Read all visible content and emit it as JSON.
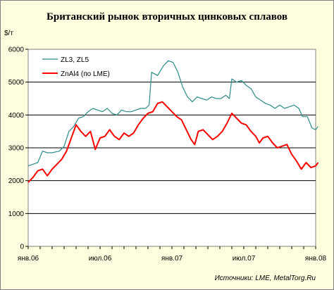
{
  "chart_data": {
    "type": "line",
    "title": "Британский рынок вторичных цинковых сплавов",
    "ylabel": "$/т",
    "xlabel": "",
    "ylim": [
      0,
      6000
    ],
    "yticks": [
      "0",
      "1000",
      "2000",
      "3000",
      "4000",
      "5000",
      "6000"
    ],
    "xticks": [
      {
        "label": "янв.06",
        "month": 0
      },
      {
        "label": "июл.06",
        "month": 6
      },
      {
        "label": "янв.07",
        "month": 12
      },
      {
        "label": "июл.07",
        "month": 18
      },
      {
        "label": "янв.08",
        "month": 24
      }
    ],
    "grid": true,
    "legend_position": "top-left",
    "series": [
      {
        "name": "ZL3, ZL5",
        "color": "#2e8b8b",
        "points": [
          [
            0.0,
            2450
          ],
          [
            0.4,
            2500
          ],
          [
            0.8,
            2550
          ],
          [
            1.2,
            2900
          ],
          [
            1.6,
            2850
          ],
          [
            2.0,
            2850
          ],
          [
            2.6,
            2900
          ],
          [
            3.0,
            3050
          ],
          [
            3.4,
            3500
          ],
          [
            3.8,
            3650
          ],
          [
            4.2,
            3900
          ],
          [
            4.6,
            3950
          ],
          [
            5.0,
            4100
          ],
          [
            5.4,
            4200
          ],
          [
            5.8,
            4150
          ],
          [
            6.2,
            4100
          ],
          [
            6.6,
            4200
          ],
          [
            7.0,
            4050
          ],
          [
            7.4,
            4000
          ],
          [
            7.8,
            4150
          ],
          [
            8.2,
            4100
          ],
          [
            8.6,
            4100
          ],
          [
            9.0,
            4150
          ],
          [
            9.4,
            4200
          ],
          [
            9.8,
            4200
          ],
          [
            10.1,
            4300
          ],
          [
            10.3,
            5300
          ],
          [
            10.8,
            5200
          ],
          [
            11.3,
            5500
          ],
          [
            11.7,
            5650
          ],
          [
            12.1,
            5600
          ],
          [
            12.5,
            5300
          ],
          [
            12.9,
            4850
          ],
          [
            13.3,
            4550
          ],
          [
            13.7,
            4400
          ],
          [
            14.1,
            4550
          ],
          [
            14.5,
            4500
          ],
          [
            14.9,
            4450
          ],
          [
            15.3,
            4550
          ],
          [
            15.7,
            4500
          ],
          [
            16.1,
            4500
          ],
          [
            16.5,
            4600
          ],
          [
            16.8,
            4500
          ],
          [
            17.0,
            5100
          ],
          [
            17.4,
            5000
          ],
          [
            17.8,
            5050
          ],
          [
            18.2,
            4900
          ],
          [
            18.6,
            4800
          ],
          [
            19.0,
            4550
          ],
          [
            19.4,
            4450
          ],
          [
            19.8,
            4350
          ],
          [
            20.2,
            4300
          ],
          [
            20.6,
            4200
          ],
          [
            21.0,
            4300
          ],
          [
            21.4,
            4200
          ],
          [
            21.8,
            4250
          ],
          [
            22.2,
            4300
          ],
          [
            22.6,
            4200
          ],
          [
            22.9,
            3950
          ],
          [
            23.3,
            3950
          ],
          [
            23.7,
            3600
          ],
          [
            24.0,
            3550
          ],
          [
            24.2,
            3650
          ]
        ]
      },
      {
        "name": "ZnAl4 (по LME)",
        "color": "#ff0000",
        "points": [
          [
            0.0,
            1950
          ],
          [
            0.4,
            2100
          ],
          [
            0.8,
            2300
          ],
          [
            1.2,
            2350
          ],
          [
            1.6,
            2150
          ],
          [
            2.0,
            2350
          ],
          [
            2.4,
            2500
          ],
          [
            2.8,
            2650
          ],
          [
            3.2,
            2900
          ],
          [
            3.6,
            3300
          ],
          [
            4.0,
            3700
          ],
          [
            4.4,
            3500
          ],
          [
            4.8,
            3350
          ],
          [
            5.2,
            3500
          ],
          [
            5.6,
            2950
          ],
          [
            6.0,
            3300
          ],
          [
            6.4,
            3350
          ],
          [
            6.8,
            3550
          ],
          [
            7.2,
            3350
          ],
          [
            7.6,
            3250
          ],
          [
            8.0,
            3450
          ],
          [
            8.4,
            3350
          ],
          [
            8.8,
            3450
          ],
          [
            9.2,
            3700
          ],
          [
            9.6,
            3900
          ],
          [
            10.0,
            4050
          ],
          [
            10.4,
            4100
          ],
          [
            10.8,
            4350
          ],
          [
            11.2,
            4400
          ],
          [
            11.6,
            4250
          ],
          [
            12.0,
            4100
          ],
          [
            12.4,
            3950
          ],
          [
            12.8,
            3850
          ],
          [
            13.2,
            3550
          ],
          [
            13.6,
            3250
          ],
          [
            13.9,
            3100
          ],
          [
            14.2,
            3500
          ],
          [
            14.6,
            3550
          ],
          [
            15.0,
            3400
          ],
          [
            15.4,
            3250
          ],
          [
            15.8,
            3350
          ],
          [
            16.2,
            3500
          ],
          [
            16.6,
            3750
          ],
          [
            17.0,
            4050
          ],
          [
            17.4,
            3900
          ],
          [
            17.8,
            3750
          ],
          [
            18.2,
            3700
          ],
          [
            18.6,
            3500
          ],
          [
            19.0,
            3350
          ],
          [
            19.3,
            3150
          ],
          [
            19.6,
            3300
          ],
          [
            20.0,
            3350
          ],
          [
            20.4,
            3150
          ],
          [
            20.8,
            3000
          ],
          [
            21.2,
            3050
          ],
          [
            21.6,
            3100
          ],
          [
            22.0,
            2800
          ],
          [
            22.4,
            2600
          ],
          [
            22.8,
            2350
          ],
          [
            23.2,
            2550
          ],
          [
            23.6,
            2400
          ],
          [
            24.0,
            2450
          ],
          [
            24.2,
            2550
          ]
        ]
      }
    ]
  },
  "source": "Источники: LME, MetalTorg.Ru"
}
